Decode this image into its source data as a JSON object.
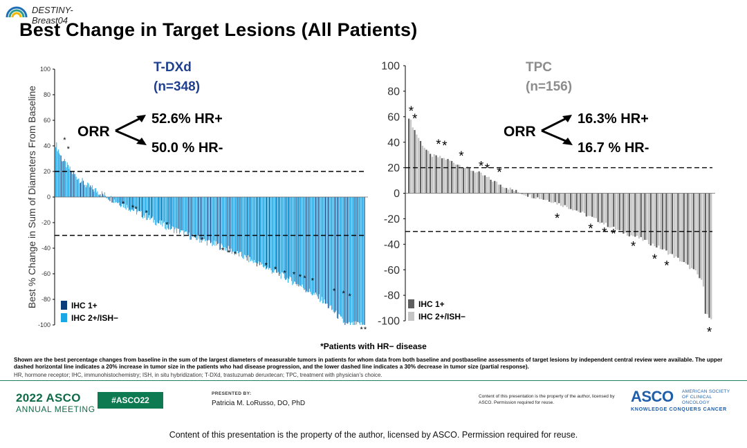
{
  "brand": {
    "text": "DESTINY-\nBreast04"
  },
  "title": "Best Change in Target Lesions (All Patients)",
  "hr_note": "*Patients with HR− disease",
  "footnote": "Shown are the best percentage changes from baseline in the sum of the largest diameters of measurable tumors in patients for whom data from both baseline and postbaseline assessments of target lesions by independent central review were available.  The upper dashed horizontal line indicates a 20% increase in tumor size in the patients who had disease progression, and the lower dashed line indicates a 30% decrease in tumor size (partial response).",
  "abbreviations": "HR, hormone receptor; IHC, immunohistochemistry; ISH, in situ hybridization; T-DXd, trastuzumab deruxtecan; TPC, treatment with physician’s choice.",
  "footer": {
    "year_brand": "2022 ASCO",
    "meeting": "ANNUAL MEETING",
    "hashtag": "#ASCO22",
    "presented_by": "PRESENTED BY:",
    "presenter": "Patricia M. LoRusso, DO, PhD",
    "copyright_small": "Content of this presentation is the property of the author, licensed by ASCO. Permission required for reuse.",
    "asco_logo": "ASCO",
    "asco_society": "AMERICAN SOCIETY OF CLINICAL ONCOLOGY",
    "asco_tagline": "KNOWLEDGE CONQUERS CANCER",
    "bottom_copyright": "Content of this presentation is the property of the author, licensed by ASCO. Permission required for reuse."
  },
  "colors": {
    "tdxd_ihc1": "#0b3d7a",
    "tdxd_ihc2": "#1aa7e6",
    "tpc_ihc1": "#5f5f5f",
    "tpc_ihc2": "#c4c4c4",
    "tdxd_title": "#1f3f8f",
    "tpc_title": "#8c8c8c",
    "green": "#0e6b47"
  },
  "chart_data": [
    {
      "type": "bar",
      "title": "T-DXd",
      "subtitle": "(n=348)",
      "ylabel": "Best % Change in Sum of Diameters From Baseline",
      "ylim": [
        -100,
        100
      ],
      "yticks": [
        100,
        80,
        60,
        40,
        20,
        0,
        -20,
        -40,
        -60,
        -80,
        -100
      ],
      "reference_lines": [
        20,
        -30
      ],
      "n_patients": 348,
      "orr_label": "ORR",
      "orr": [
        {
          "text": "52.6% HR+"
        },
        {
          "text": "50.0 % HR-"
        }
      ],
      "legend": [
        "IHC 1+",
        "IHC 2+/ISH−"
      ],
      "legend_placement": "bottom-left",
      "series_profile": [
        {
          "rank_fraction": 0.0,
          "value": 42
        },
        {
          "rank_fraction": 0.02,
          "value": 30
        },
        {
          "rank_fraction": 0.05,
          "value": 20
        },
        {
          "rank_fraction": 0.1,
          "value": 9
        },
        {
          "rank_fraction": 0.17,
          "value": 0
        },
        {
          "rank_fraction": 0.25,
          "value": -10
        },
        {
          "rank_fraction": 0.33,
          "value": -20
        },
        {
          "rank_fraction": 0.44,
          "value": -31
        },
        {
          "rank_fraction": 0.55,
          "value": -40
        },
        {
          "rank_fraction": 0.68,
          "value": -55
        },
        {
          "rank_fraction": 0.79,
          "value": -69
        },
        {
          "rank_fraction": 0.86,
          "value": -80
        },
        {
          "rank_fraction": 0.91,
          "value": -92
        },
        {
          "rank_fraction": 0.94,
          "value": -100
        },
        {
          "rank_fraction": 1.0,
          "value": -100
        }
      ],
      "hr_negative_markers": [
        {
          "x": 0.03,
          "y": 45
        },
        {
          "x": 0.042,
          "y": 38
        },
        {
          "x": 0.219,
          "y": -5
        },
        {
          "x": 0.25,
          "y": -8
        },
        {
          "x": 0.26,
          "y": -9
        },
        {
          "x": 0.294,
          "y": -12
        },
        {
          "x": 0.36,
          "y": -21
        },
        {
          "x": 0.45,
          "y": -31
        },
        {
          "x": 0.474,
          "y": -33
        },
        {
          "x": 0.54,
          "y": -41
        },
        {
          "x": 0.56,
          "y": -43
        },
        {
          "x": 0.58,
          "y": -44
        },
        {
          "x": 0.68,
          "y": -53
        },
        {
          "x": 0.71,
          "y": -56
        },
        {
          "x": 0.74,
          "y": -59
        },
        {
          "x": 0.77,
          "y": -60
        },
        {
          "x": 0.79,
          "y": -62
        },
        {
          "x": 0.805,
          "y": -63
        },
        {
          "x": 0.83,
          "y": -65
        },
        {
          "x": 0.9,
          "y": -73
        },
        {
          "x": 0.93,
          "y": -75
        },
        {
          "x": 0.95,
          "y": -77
        },
        {
          "x": 0.988,
          "y": -103
        },
        {
          "x": 1.0,
          "y": -103
        }
      ]
    },
    {
      "type": "bar",
      "title": "TPC",
      "subtitle": "(n=156)",
      "ylim": [
        -100,
        100
      ],
      "yticks": [
        100,
        80,
        60,
        40,
        20,
        0,
        -20,
        -40,
        -60,
        -80,
        -100
      ],
      "reference_lines": [
        20,
        -30
      ],
      "n_patients": 156,
      "orr_label": "ORR",
      "orr": [
        {
          "text": "16.3% HR+"
        },
        {
          "text": "16.7 % HR-"
        }
      ],
      "legend": [
        "IHC 1+",
        "IHC 2+/ISH−"
      ],
      "legend_placement": "bottom-left",
      "series_profile": [
        {
          "rank_fraction": 0.0,
          "value": 60
        },
        {
          "rank_fraction": 0.02,
          "value": 49
        },
        {
          "rank_fraction": 0.04,
          "value": 40
        },
        {
          "rank_fraction": 0.07,
          "value": 30
        },
        {
          "rank_fraction": 0.12,
          "value": 27
        },
        {
          "rank_fraction": 0.18,
          "value": 21
        },
        {
          "rank_fraction": 0.23,
          "value": 16
        },
        {
          "rank_fraction": 0.3,
          "value": 7
        },
        {
          "rank_fraction": 0.36,
          "value": 1
        },
        {
          "rank_fraction": 0.4,
          "value": -2
        },
        {
          "rank_fraction": 0.47,
          "value": -6
        },
        {
          "rank_fraction": 0.55,
          "value": -13
        },
        {
          "rank_fraction": 0.63,
          "value": -22
        },
        {
          "rank_fraction": 0.7,
          "value": -30
        },
        {
          "rank_fraction": 0.76,
          "value": -35
        },
        {
          "rank_fraction": 0.84,
          "value": -44
        },
        {
          "rank_fraction": 0.9,
          "value": -53
        },
        {
          "rank_fraction": 0.95,
          "value": -62
        },
        {
          "rank_fraction": 0.975,
          "value": -72
        },
        {
          "rank_fraction": 0.98,
          "value": -93
        },
        {
          "rank_fraction": 1.0,
          "value": -100
        }
      ],
      "hr_negative_markers": [
        {
          "x": 0.01,
          "y": 65
        },
        {
          "x": 0.022,
          "y": 59
        },
        {
          "x": 0.1,
          "y": 39
        },
        {
          "x": 0.12,
          "y": 38
        },
        {
          "x": 0.175,
          "y": 30
        },
        {
          "x": 0.24,
          "y": 22
        },
        {
          "x": 0.26,
          "y": 20
        },
        {
          "x": 0.3,
          "y": 17
        },
        {
          "x": 0.49,
          "y": -19
        },
        {
          "x": 0.6,
          "y": -27
        },
        {
          "x": 0.645,
          "y": -30
        },
        {
          "x": 0.675,
          "y": -31
        },
        {
          "x": 0.74,
          "y": -41
        },
        {
          "x": 0.81,
          "y": -51
        },
        {
          "x": 0.85,
          "y": -56
        },
        {
          "x": 0.99,
          "y": -108
        }
      ]
    }
  ]
}
